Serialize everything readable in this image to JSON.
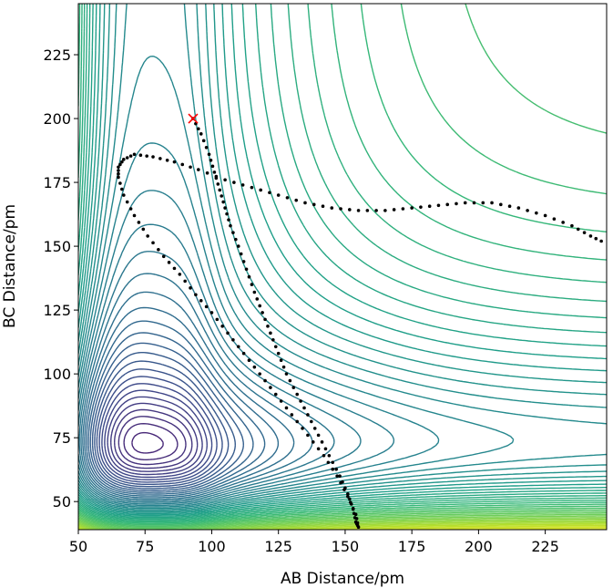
{
  "chart_data": {
    "type": "contour",
    "title": "",
    "xlabel": "AB Distance/pm",
    "ylabel": "BC Distance/pm",
    "xlim": [
      50,
      248
    ],
    "ylim": [
      39,
      245
    ],
    "xticks": [
      50,
      75,
      100,
      125,
      150,
      175,
      200,
      225
    ],
    "yticks": [
      50,
      75,
      100,
      125,
      150,
      175,
      200,
      225
    ],
    "grid": false,
    "colormap": "viridis",
    "contour_levels": 64,
    "start_marker": {
      "x": 93,
      "y": 200,
      "color": "#ff0000",
      "symbol": "x"
    },
    "trajectory": {
      "color": "#000000",
      "style": "dots",
      "points": [
        [
          93,
          200
        ],
        [
          96,
          194
        ],
        [
          99,
          186
        ],
        [
          101,
          179
        ],
        [
          103,
          172
        ],
        [
          105,
          165
        ],
        [
          107,
          158
        ],
        [
          110,
          150
        ],
        [
          113,
          141
        ],
        [
          116,
          132
        ],
        [
          119,
          124
        ],
        [
          122,
          116
        ],
        [
          125,
          108
        ],
        [
          128,
          100
        ],
        [
          132,
          92
        ],
        [
          136,
          84
        ],
        [
          140,
          76
        ],
        [
          144,
          68
        ],
        [
          148,
          60
        ],
        [
          151,
          53
        ],
        [
          153,
          47
        ],
        [
          154,
          42
        ],
        [
          155,
          40
        ],
        [
          154,
          45
        ],
        [
          151,
          52
        ],
        [
          147,
          60
        ],
        [
          142,
          68
        ],
        [
          136,
          76
        ],
        [
          130,
          84
        ],
        [
          124,
          92
        ],
        [
          118,
          100
        ],
        [
          112,
          108
        ],
        [
          106,
          116
        ],
        [
          100,
          124
        ],
        [
          94,
          131
        ],
        [
          88,
          139
        ],
        [
          82,
          146
        ],
        [
          76,
          154
        ],
        [
          71,
          162
        ],
        [
          67,
          170
        ],
        [
          65,
          177
        ],
        [
          65,
          181
        ],
        [
          67,
          184
        ],
        [
          71,
          186
        ],
        [
          78,
          185
        ],
        [
          86,
          183
        ],
        [
          95,
          180
        ],
        [
          105,
          176
        ],
        [
          115,
          173
        ],
        [
          125,
          170
        ],
        [
          135,
          167
        ],
        [
          145,
          165
        ],
        [
          155,
          164
        ],
        [
          165,
          164
        ],
        [
          175,
          165
        ],
        [
          185,
          166
        ],
        [
          195,
          167
        ],
        [
          205,
          167
        ],
        [
          215,
          165
        ],
        [
          225,
          162
        ],
        [
          235,
          158
        ],
        [
          242,
          154
        ],
        [
          248,
          151
        ]
      ]
    }
  }
}
